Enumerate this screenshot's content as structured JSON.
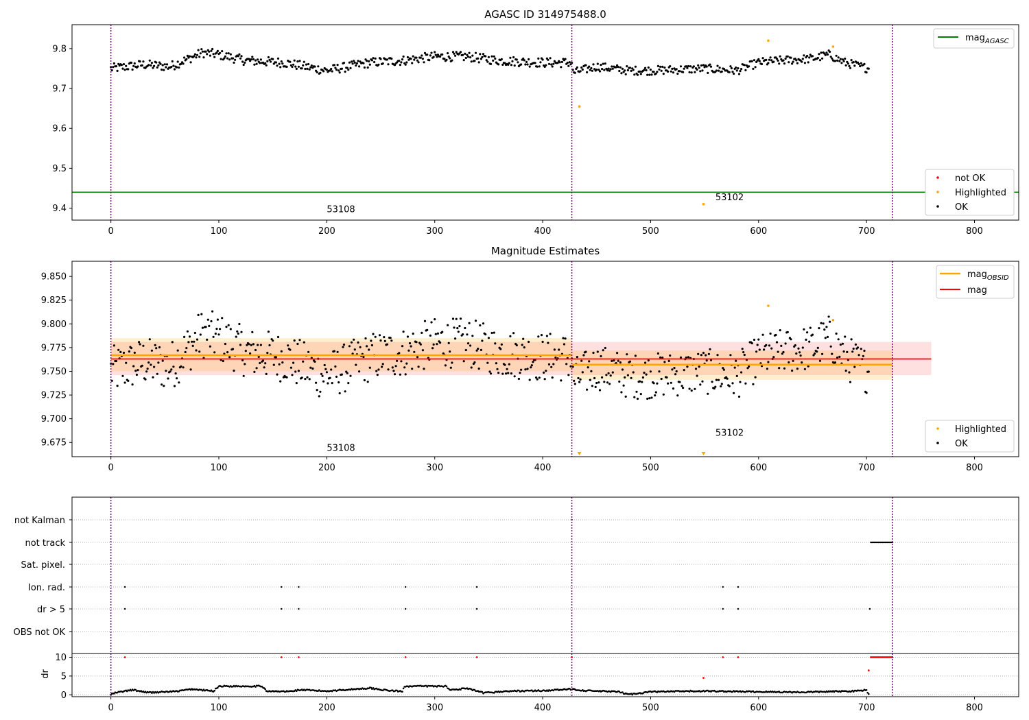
{
  "figure_title": "AGASC ID 314975488.0",
  "colors": {
    "ok": "#000000",
    "highlighted": "#ffa500",
    "not_ok": "#ff0000",
    "mag_agasc": "#008000",
    "mag_obsid": "#ffa500",
    "mag": "#ff0000",
    "obs_boundary": "#800080"
  },
  "chart_data": [
    {
      "type": "scatter",
      "title": "AGASC ID 314975488.0",
      "xlim": [
        -36,
        841
      ],
      "ylim": [
        9.37,
        9.86
      ],
      "xticks": [
        0,
        100,
        200,
        300,
        400,
        500,
        600,
        700,
        800
      ],
      "xtick_labels": [
        "0",
        "100",
        "200",
        "300",
        "400",
        "500",
        "600",
        "700",
        "800"
      ],
      "yticks": [
        9.4,
        9.5,
        9.6,
        9.7,
        9.8
      ],
      "ytick_labels": [
        "9.4",
        "9.5",
        "9.6",
        "9.7",
        "9.8"
      ],
      "obs_boundaries": [
        0,
        427,
        724
      ],
      "mag_agasc": 9.44,
      "highlighted": [
        [
          434,
          9.655
        ],
        [
          549,
          9.41
        ],
        [
          609,
          9.82
        ],
        [
          669,
          9.805
        ]
      ],
      "annotations": [
        {
          "text": "53108",
          "x": 200,
          "y": 9.39
        },
        {
          "text": "53102",
          "x": 560,
          "y": 9.42
        }
      ],
      "series_ok_segments": [
        {
          "x0": 0,
          "x1": 427,
          "anchors": [
            [
              0,
              9.75
            ],
            [
              30,
              9.76
            ],
            [
              55,
              9.755
            ],
            [
              85,
              9.79
            ],
            [
              100,
              9.785
            ],
            [
              125,
              9.77
            ],
            [
              160,
              9.765
            ],
            [
              200,
              9.745
            ],
            [
              240,
              9.765
            ],
            [
              270,
              9.77
            ],
            [
              300,
              9.78
            ],
            [
              330,
              9.78
            ],
            [
              360,
              9.77
            ],
            [
              400,
              9.765
            ],
            [
              427,
              9.765
            ]
          ],
          "spread": 0.012
        },
        {
          "x0": 428,
          "x1": 702,
          "anchors": [
            [
              428,
              9.74
            ],
            [
              450,
              9.755
            ],
            [
              480,
              9.745
            ],
            [
              500,
              9.745
            ],
            [
              550,
              9.75
            ],
            [
              580,
              9.745
            ],
            [
              600,
              9.765
            ],
            [
              620,
              9.77
            ],
            [
              650,
              9.775
            ],
            [
              665,
              9.785
            ],
            [
              680,
              9.765
            ],
            [
              702,
              9.75
            ]
          ],
          "spread": 0.011
        }
      ],
      "legend": {
        "upper_right": [
          "mag_AGASC"
        ],
        "lower_right": [
          "not OK",
          "Highlighted",
          "OK"
        ]
      }
    },
    {
      "type": "scatter",
      "title": "Magnitude Estimates",
      "xlim": [
        -36,
        841
      ],
      "ylim": [
        9.66,
        9.866
      ],
      "xticks": [
        0,
        100,
        200,
        300,
        400,
        500,
        600,
        700,
        800
      ],
      "xtick_labels": [
        "0",
        "100",
        "200",
        "300",
        "400",
        "500",
        "600",
        "700",
        "800"
      ],
      "yticks": [
        9.675,
        9.7,
        9.725,
        9.75,
        9.775,
        9.8,
        9.825,
        9.85
      ],
      "ytick_labels": [
        "9.675",
        "9.700",
        "9.725",
        "9.750",
        "9.775",
        "9.800",
        "9.825",
        "9.850"
      ],
      "obs_boundaries": [
        0,
        427,
        724
      ],
      "mag": 9.763,
      "mag_band": [
        9.746,
        9.781
      ],
      "mag_band_x": [
        0,
        760
      ],
      "mag_obsid": [
        {
          "x0": 0,
          "x1": 427,
          "value": 9.767,
          "band": [
            9.75,
            9.785
          ]
        },
        {
          "x0": 427,
          "x1": 724,
          "value": 9.757,
          "band": [
            9.741,
            9.772
          ]
        }
      ],
      "highlighted": [
        [
          609,
          9.819
        ],
        [
          669,
          9.804
        ],
        [
          434,
          9.663
        ],
        [
          549,
          9.663
        ]
      ],
      "annotations": [
        {
          "text": "53108",
          "x": 200,
          "y": 9.666
        },
        {
          "text": "53102",
          "x": 560,
          "y": 9.682
        }
      ],
      "legend": {
        "upper_right": [
          "mag_OBSID",
          "mag"
        ],
        "lower_right": [
          "Highlighted",
          "OK"
        ]
      }
    },
    {
      "type": "scatter",
      "xlim": [
        -36,
        841
      ],
      "categories": [
        "not Kalman",
        "not track",
        "Sat. pixel.",
        "Ion. rad.",
        "dr > 5",
        "OBS not OK"
      ],
      "flags": {
        "not Kalman": [
          427
        ],
        "not track": [
          [
            704,
            724
          ]
        ],
        "Sat. pixel.": [],
        "Ion. rad.": [
          13,
          158,
          174,
          273,
          339,
          567,
          581
        ],
        "dr > 5": [
          13,
          158,
          174,
          273,
          339,
          567,
          581,
          703
        ],
        "OBS not OK": []
      },
      "obs_boundaries": [
        0,
        427,
        724
      ]
    },
    {
      "type": "scatter",
      "ylabel": "dr",
      "xlim": [
        -36,
        841
      ],
      "ylim": [
        -0.5,
        11
      ],
      "yticks": [
        0,
        5,
        10
      ],
      "ytick_labels": [
        "0",
        "5",
        "10"
      ],
      "xticks": [
        0,
        100,
        200,
        300,
        400,
        500,
        600,
        700,
        800
      ],
      "xtick_labels": [
        "0",
        "100",
        "200",
        "300",
        "400",
        "500",
        "600",
        "700",
        "800"
      ],
      "dr_not_ok": [
        [
          13,
          10
        ],
        [
          158,
          10
        ],
        [
          174,
          10
        ],
        [
          273,
          10
        ],
        [
          339,
          10
        ],
        [
          427,
          10
        ],
        [
          549,
          4.5
        ],
        [
          567,
          10
        ],
        [
          581,
          10
        ],
        [
          702,
          6.5
        ],
        [
          [
            704,
            724
          ],
          10
        ]
      ],
      "dr_levels": [
        [
          0,
          0.1
        ],
        [
          5,
          0.6
        ],
        [
          20,
          1.3
        ],
        [
          35,
          0.6
        ],
        [
          60,
          0.9
        ],
        [
          75,
          1.5
        ],
        [
          95,
          1.0
        ],
        [
          100,
          2.3
        ],
        [
          140,
          2.3
        ],
        [
          145,
          0.9
        ],
        [
          165,
          0.9
        ],
        [
          175,
          1.3
        ],
        [
          200,
          1.0
        ],
        [
          220,
          1.4
        ],
        [
          240,
          1.8
        ],
        [
          255,
          1.2
        ],
        [
          270,
          0.9
        ],
        [
          272,
          2.3
        ],
        [
          310,
          2.3
        ],
        [
          315,
          1.3
        ],
        [
          330,
          1.7
        ],
        [
          345,
          0.5
        ],
        [
          370,
          1.0
        ],
        [
          400,
          1.1
        ],
        [
          420,
          1.4
        ],
        [
          427,
          1.5
        ],
        [
          440,
          1.1
        ],
        [
          470,
          0.8
        ],
        [
          480,
          0.1
        ],
        [
          500,
          0.8
        ],
        [
          550,
          1.0
        ],
        [
          600,
          0.8
        ],
        [
          640,
          0.7
        ],
        [
          690,
          1.0
        ],
        [
          700,
          1.3
        ],
        [
          702,
          0.1
        ]
      ],
      "obs_boundaries": [
        0,
        427,
        724
      ]
    }
  ]
}
